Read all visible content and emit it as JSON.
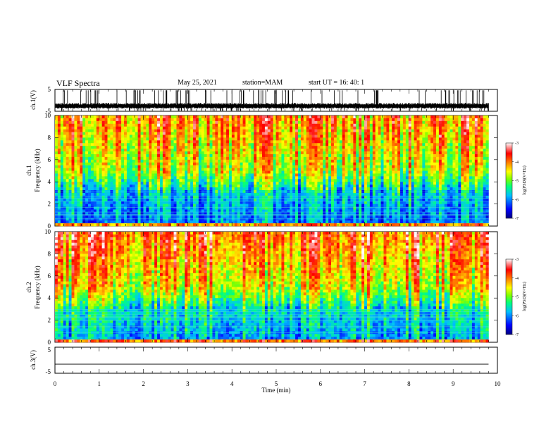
{
  "header": {
    "title": "VLF Spectra",
    "date": "May 25, 2021",
    "station": "station=MAM",
    "start": "start  UT =   16: 40: 1"
  },
  "chart_data": [
    {
      "type": "line",
      "panel": "ch1-waveform",
      "ylabel": "ch.1(V)",
      "yticks": [
        "5",
        "-5"
      ],
      "ylim": [
        -5,
        5
      ],
      "xlim": [
        0,
        10
      ],
      "x_unit": "min",
      "description_values": {
        "typical_range": [
          -3.8,
          -1.2
        ]
      },
      "color": "#000000"
    },
    {
      "type": "heatmap",
      "panel": "ch1-spectrogram",
      "ylabel": "ch.1\nFrequency (kHz)",
      "yticks": [
        "0",
        "2",
        "4",
        "6",
        "8",
        "10"
      ],
      "ylim": [
        0,
        10
      ],
      "xlim": [
        0,
        9.8
      ],
      "colorbar": {
        "label": "log(PSD)(V²/Hz)",
        "ticks": [
          "-3",
          "-4",
          "-5",
          "-6",
          "-7"
        ],
        "range": [
          -7,
          -3
        ]
      }
    },
    {
      "type": "heatmap",
      "panel": "ch2-spectrogram",
      "ylabel": "ch.2\nFrequency (kHz)",
      "yticks": [
        "0",
        "2",
        "4",
        "6",
        "8",
        "10"
      ],
      "ylim": [
        0,
        10
      ],
      "xlim": [
        0,
        9.8
      ],
      "colorbar": {
        "label": "log(PSD)(V²/Hz)",
        "ticks": [
          "-3",
          "-4",
          "-5",
          "-6",
          "-7"
        ],
        "range": [
          -7,
          -3
        ]
      }
    },
    {
      "type": "line",
      "panel": "ch3-waveform",
      "ylabel": "ch.3(V)",
      "yticks": [
        "5",
        "-5"
      ],
      "ylim": [
        -5,
        5
      ],
      "xlim": [
        0,
        10
      ],
      "constant_value": -1.5,
      "color": "#000000"
    }
  ],
  "x_axis": {
    "label": "Time (min)",
    "ticks": [
      "0",
      "1",
      "2",
      "3",
      "4",
      "5",
      "6",
      "7",
      "8",
      "9",
      "10"
    ]
  },
  "colormap": [
    "#00007f",
    "#0000ff",
    "#00bfff",
    "#00ff7f",
    "#7fff00",
    "#ffff00",
    "#ff7f00",
    "#ff0000",
    "#ffffff"
  ]
}
